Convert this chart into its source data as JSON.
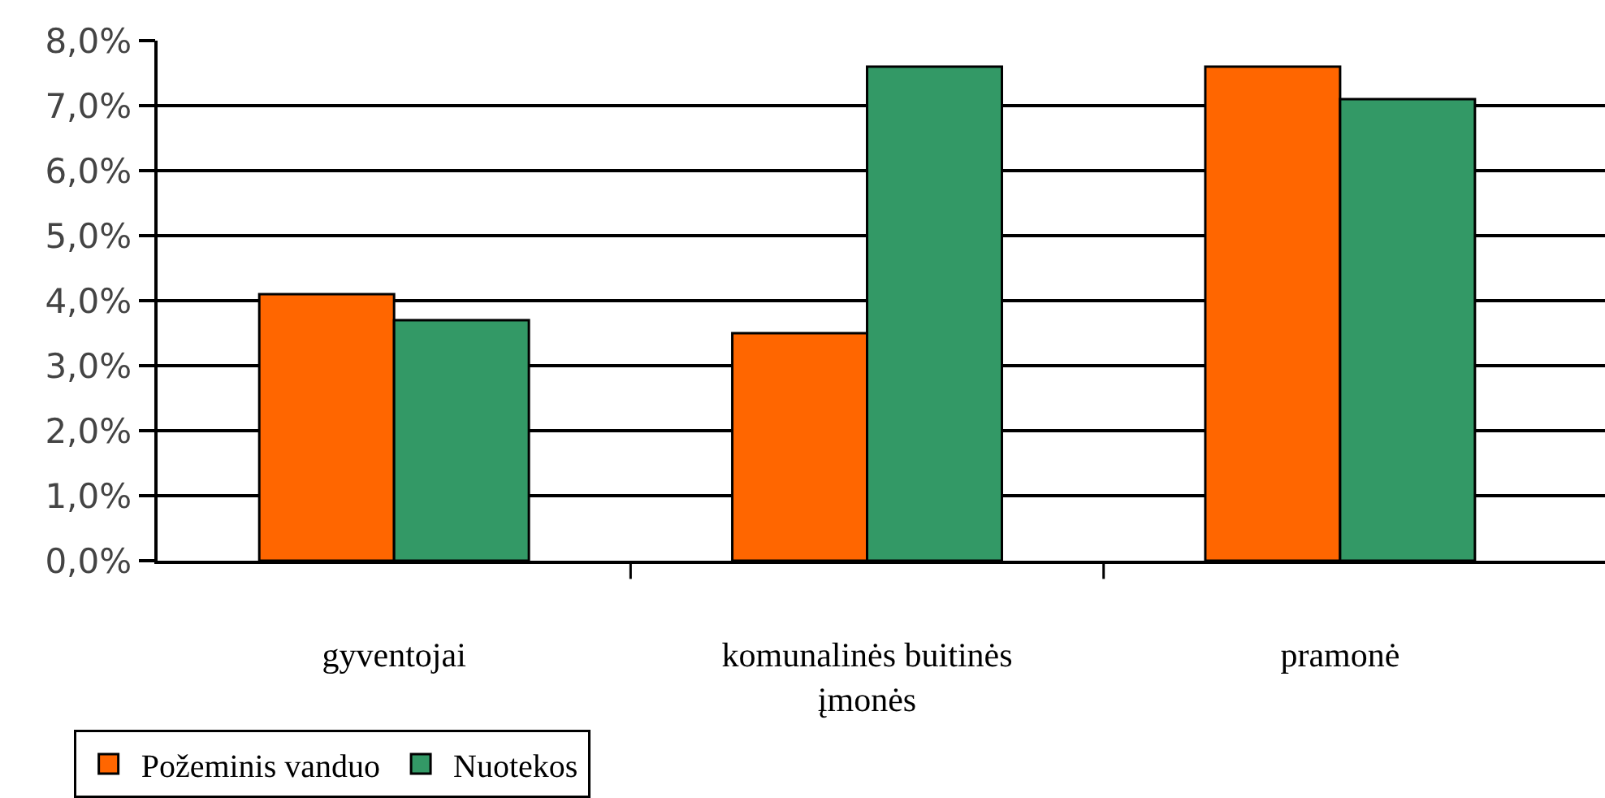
{
  "chart_data": {
    "type": "bar",
    "categories": [
      "gyventojai",
      "komunalinės buitinės įmonės",
      "pramonė"
    ],
    "series": [
      {
        "name": "Požeminis vanduo",
        "color": "#ff6600",
        "values": [
          4.1,
          3.5,
          7.6
        ]
      },
      {
        "name": "Nuotekos",
        "color": "#339966",
        "values": [
          3.7,
          7.6,
          7.1
        ]
      }
    ],
    "ylim": [
      0,
      8
    ],
    "yticks": [
      {
        "value": 0,
        "label": "0,0%"
      },
      {
        "value": 1,
        "label": "1,0%"
      },
      {
        "value": 2,
        "label": "2,0%"
      },
      {
        "value": 3,
        "label": "3,0%"
      },
      {
        "value": 4,
        "label": "4,0%"
      },
      {
        "value": 5,
        "label": "5,0%"
      },
      {
        "value": 6,
        "label": "6,0%"
      },
      {
        "value": 7,
        "label": "7,0%"
      },
      {
        "value": 8,
        "label": "8,0%"
      }
    ],
    "grid": "y",
    "legend": "bottom left"
  }
}
